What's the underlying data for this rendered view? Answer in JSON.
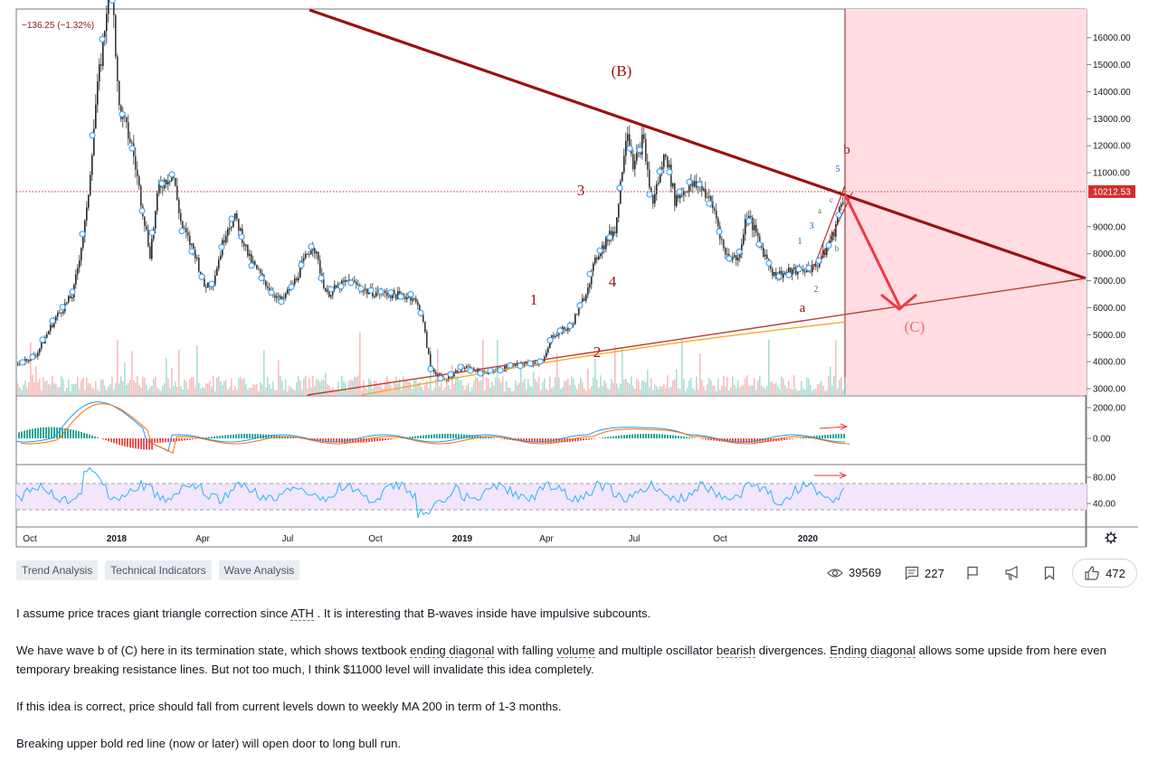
{
  "chart": {
    "change_label": "−136.25 (−1.32%)",
    "current_price": "10212.53",
    "price_ticks": [
      "16000.00",
      "15000.00",
      "14000.00",
      "13000.00",
      "12000.00",
      "11000.00",
      "9000.00",
      "8000.00",
      "7000.00",
      "6000.00",
      "5000.00",
      "4000.00",
      "3000.00"
    ],
    "macd_ticks": [
      "2000.00",
      "0.00"
    ],
    "rsi_ticks": [
      "80.00",
      "40.00"
    ],
    "time_ticks": [
      {
        "label": "Oct",
        "bold": false
      },
      {
        "label": "2018",
        "bold": true
      },
      {
        "label": "Apr",
        "bold": false
      },
      {
        "label": "Jul",
        "bold": false
      },
      {
        "label": "Oct",
        "bold": false
      },
      {
        "label": "2019",
        "bold": true
      },
      {
        "label": "Apr",
        "bold": false
      },
      {
        "label": "Jul",
        "bold": false
      },
      {
        "label": "Oct",
        "bold": false
      },
      {
        "label": "2020",
        "bold": true
      }
    ],
    "wave_labels": {
      "big_B": "(B)",
      "big_C": "(C)",
      "w1": "1",
      "w2": "2",
      "w3": "3",
      "w4": "4",
      "a": "a",
      "b": "b",
      "sub_1": "1",
      "sub_2": "2",
      "sub_3": "3",
      "sub_5": "5",
      "sub_a": "a",
      "sub_b": "b",
      "sub_c": "c"
    },
    "colors": {
      "resistance": "#9b1111",
      "support": "#c0392b",
      "ma200": "#f5a623",
      "zone": "#ffdde2",
      "up": "#26a69a",
      "down": "#ef5350",
      "macd": "#2196f3",
      "signal": "#ff6d00",
      "rsi": "#29b6f6",
      "rsi_band": "#f3e5fc",
      "projection": "#f23645"
    }
  },
  "tags": [
    "Trend Analysis",
    "Technical Indicators",
    "Wave Analysis"
  ],
  "stats": {
    "views": "39569",
    "comments": "227",
    "likes": "472"
  },
  "icons": [
    "eye-icon",
    "comment-icon",
    "flag-icon",
    "megaphone-icon",
    "bookmark-icon",
    "thumbs-up-icon",
    "settings-gear-icon"
  ],
  "description": {
    "p1_a": "I assume price traces giant triangle correction since ",
    "p1_term": "ATH",
    "p1_b": " . It is interesting that B-waves inside have impulsive subcounts.",
    "p2_a": "We have wave b of (C) here in its termination state, which shows textbook ",
    "p2_t1": "ending diagonal",
    "p2_b": " with falling ",
    "p2_t2": "volume",
    "p2_c": " and multiple oscillator ",
    "p2_t3": "bearish",
    "p2_d": " divergences. ",
    "p2_t4": "Ending diagonal",
    "p2_e": " allows some upside from here even temporary breaking resistance lines. But not too much, I think $11000 level will invalidate this idea completely.",
    "p3": "If this idea is correct, price should fall from current levels down to weekly MA 200 in term of 1-3 months.",
    "p4": "Breaking upper bold red line (now or later) will open door to long bull run."
  }
}
